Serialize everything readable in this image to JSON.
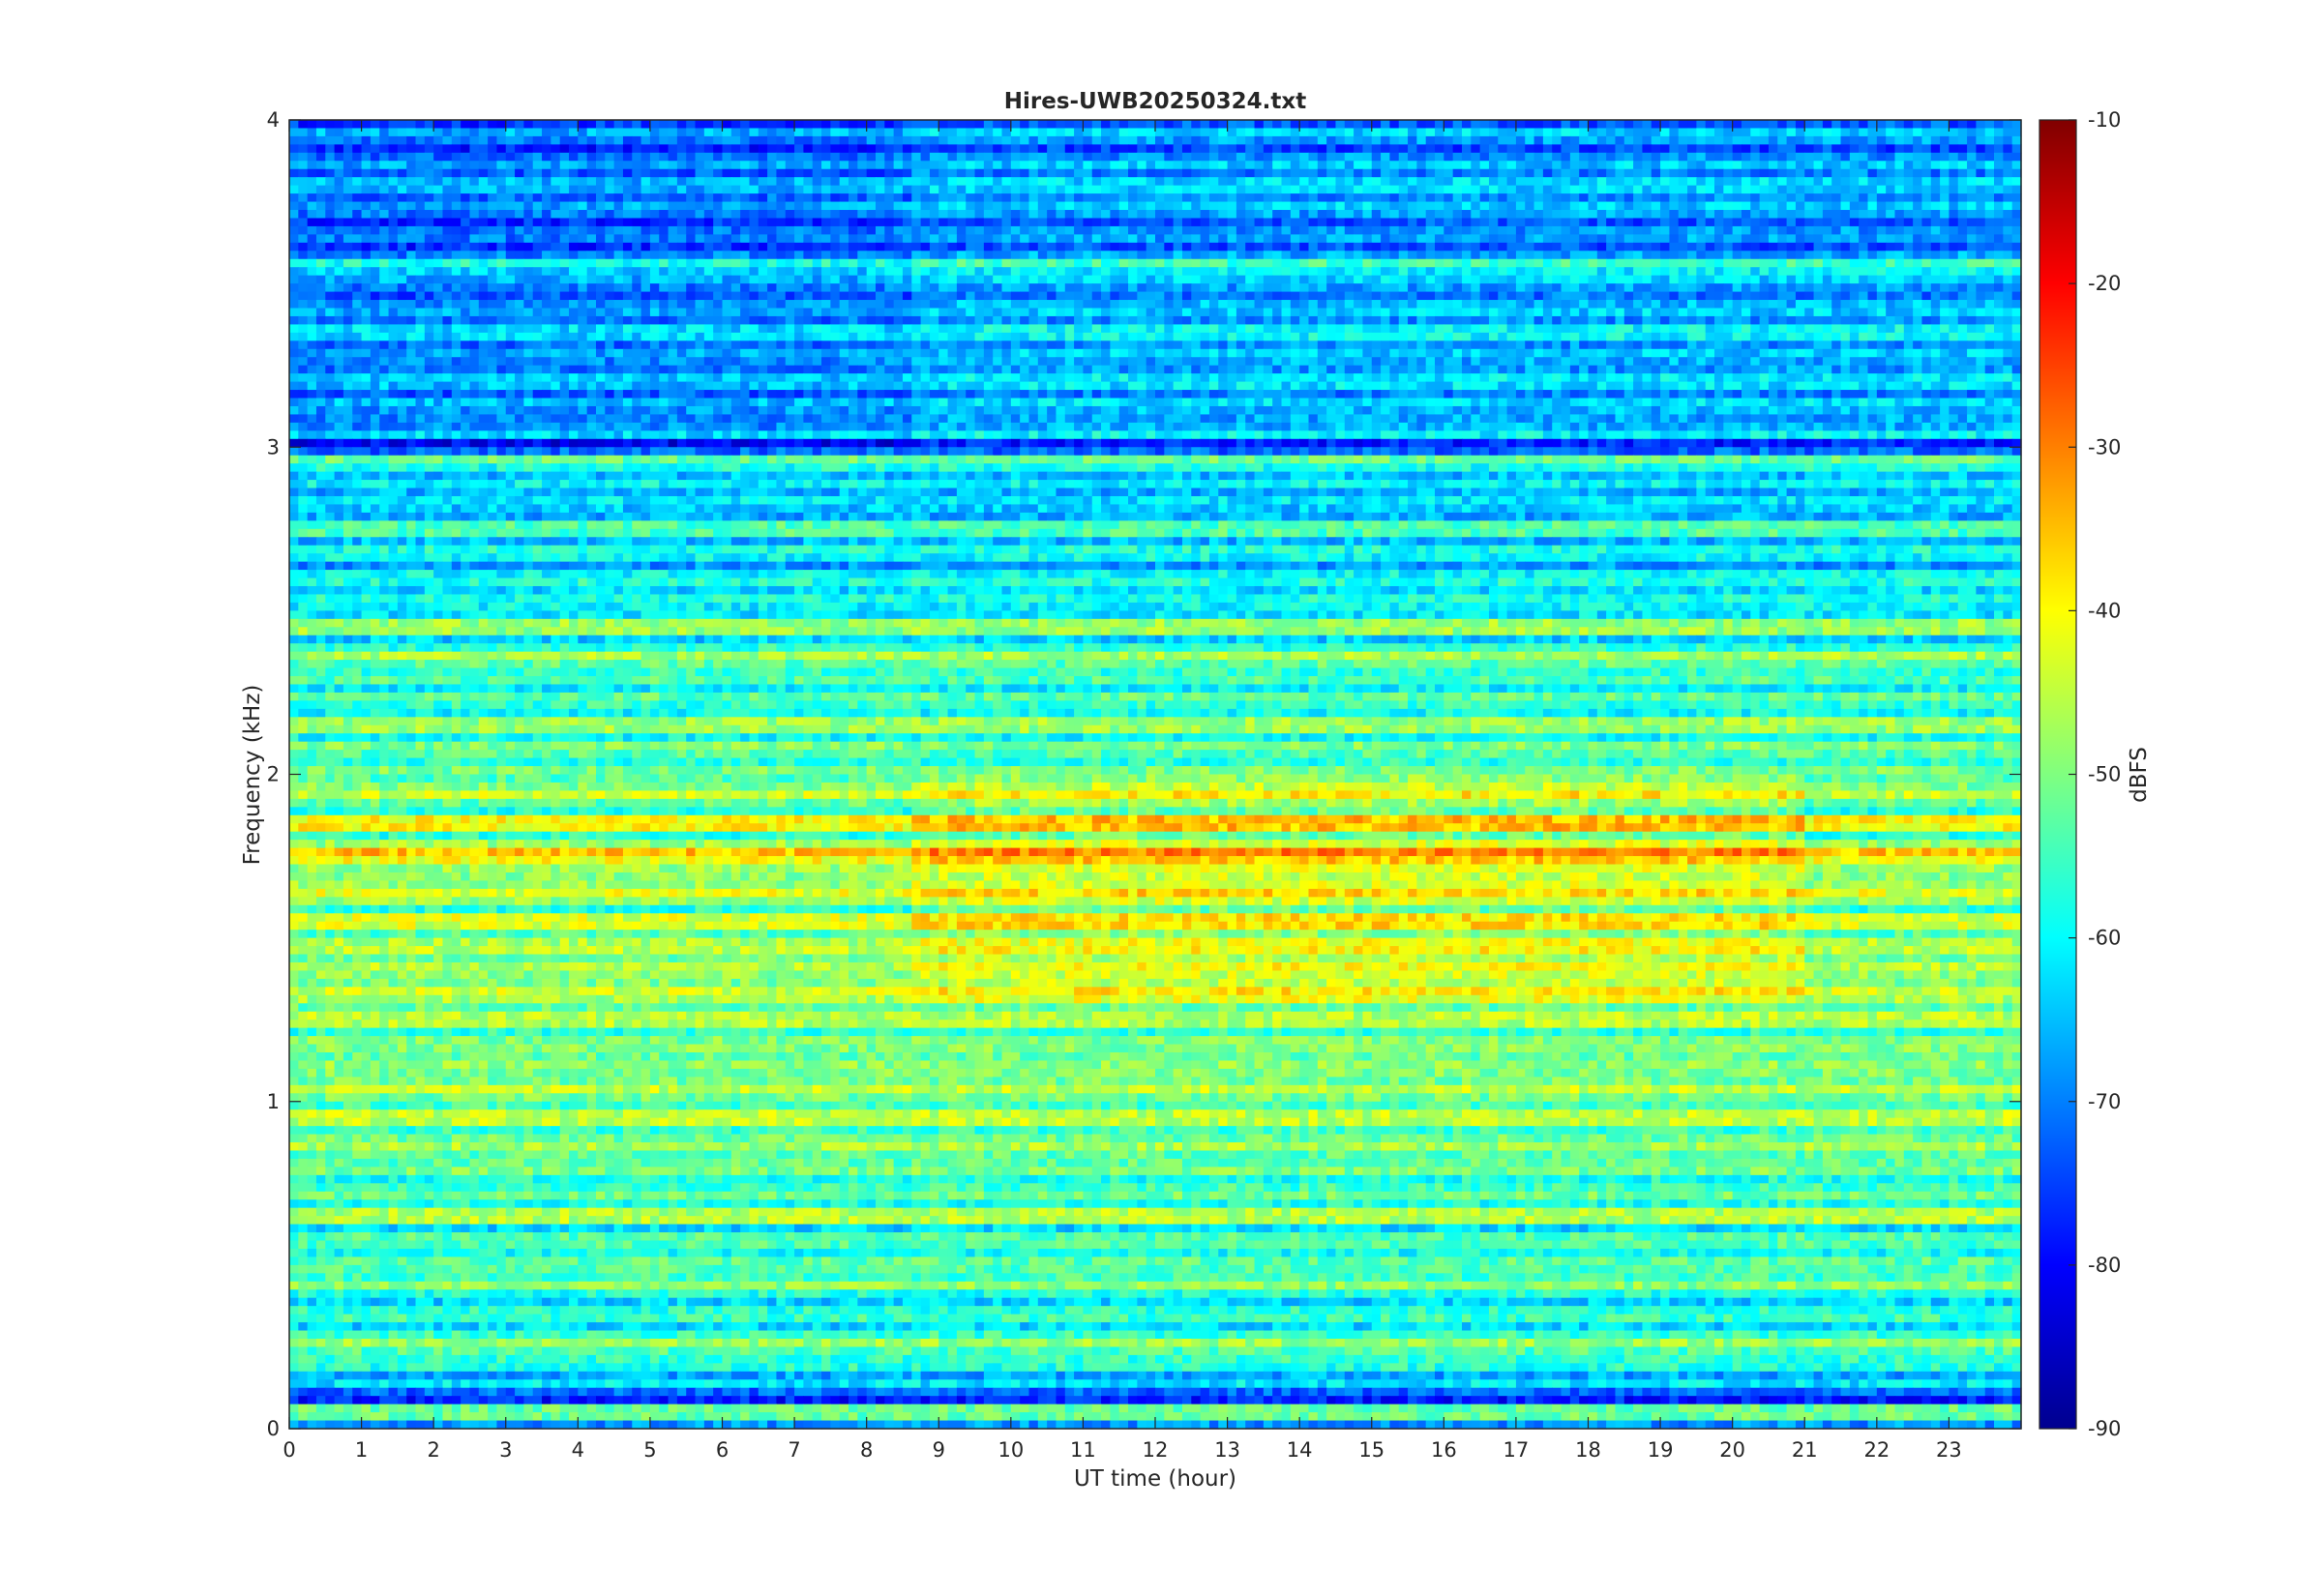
{
  "chart_data": {
    "type": "heatmap",
    "title": "Hires-UWB20250324.txt",
    "xlabel": "UT time (hour)",
    "ylabel": "Frequency (kHz)",
    "colorbar_label": "dBFS",
    "xlim": [
      0,
      24
    ],
    "ylim": [
      0,
      4
    ],
    "clim": [
      -90,
      -10
    ],
    "colormap": "jet",
    "x_ticks": [
      "0",
      "1",
      "2",
      "3",
      "4",
      "5",
      "6",
      "7",
      "8",
      "9",
      "10",
      "11",
      "12",
      "13",
      "14",
      "15",
      "16",
      "17",
      "18",
      "19",
      "20",
      "21",
      "22",
      "23"
    ],
    "y_ticks": [
      "0",
      "1",
      "2",
      "3",
      "4"
    ],
    "colorbar_ticks": [
      "-10",
      "-20",
      "-30",
      "-40",
      "-50",
      "-60",
      "-70",
      "-80",
      "-90"
    ],
    "grid": false,
    "time_segments_hours": [
      0,
      8.6,
      21,
      24
    ],
    "band_levels_dbfs": [
      {
        "freq_khz": 0.05,
        "level": -52
      },
      {
        "freq_khz": 0.1,
        "level": -72
      },
      {
        "freq_khz": 0.25,
        "level": -48
      },
      {
        "freq_khz": 0.45,
        "level": -49
      },
      {
        "freq_khz": 0.65,
        "level": -46
      },
      {
        "freq_khz": 0.85,
        "level": -47
      },
      {
        "freq_khz": 0.95,
        "level": -45
      },
      {
        "freq_khz": 1.05,
        "level": -45
      },
      {
        "freq_khz": 1.25,
        "level": -46
      },
      {
        "freq_khz": 1.35,
        "level": -44
      },
      {
        "freq_khz": 1.45,
        "level": -45
      },
      {
        "freq_khz": 1.55,
        "level": -43
      },
      {
        "freq_khz": 1.65,
        "level": -42
      },
      {
        "freq_khz": 1.75,
        "level": -35
      },
      {
        "freq_khz": 1.85,
        "level": -40
      },
      {
        "freq_khz": 1.95,
        "level": -44
      },
      {
        "freq_khz": 2.15,
        "level": -48
      },
      {
        "freq_khz": 2.35,
        "level": -47
      },
      {
        "freq_khz": 2.45,
        "level": -48
      },
      {
        "freq_khz": 2.75,
        "level": -54
      },
      {
        "freq_khz": 2.95,
        "level": -52
      },
      {
        "freq_khz": 3.0,
        "level": -72
      },
      {
        "freq_khz": 3.35,
        "level": -60
      },
      {
        "freq_khz": 3.55,
        "level": -55
      },
      {
        "freq_khz": 3.85,
        "level": -64
      }
    ]
  }
}
